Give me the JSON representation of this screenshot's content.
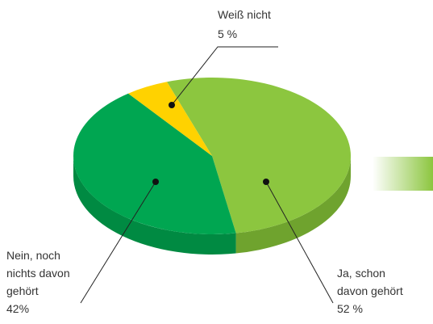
{
  "chart_data": {
    "type": "pie",
    "categories": [
      "Ja, schon davon gehört",
      "Nein, noch nichts davon gehört",
      "Weiß nicht"
    ],
    "values": [
      52,
      42,
      5
    ],
    "value_labels": [
      "52 %",
      "42%",
      "5 %"
    ],
    "colors": [
      "#8cc63f",
      "#00a651",
      "#ffd200"
    ],
    "side_colors": [
      "#6fa32e",
      "#008a42",
      "#d9b300"
    ]
  }
}
